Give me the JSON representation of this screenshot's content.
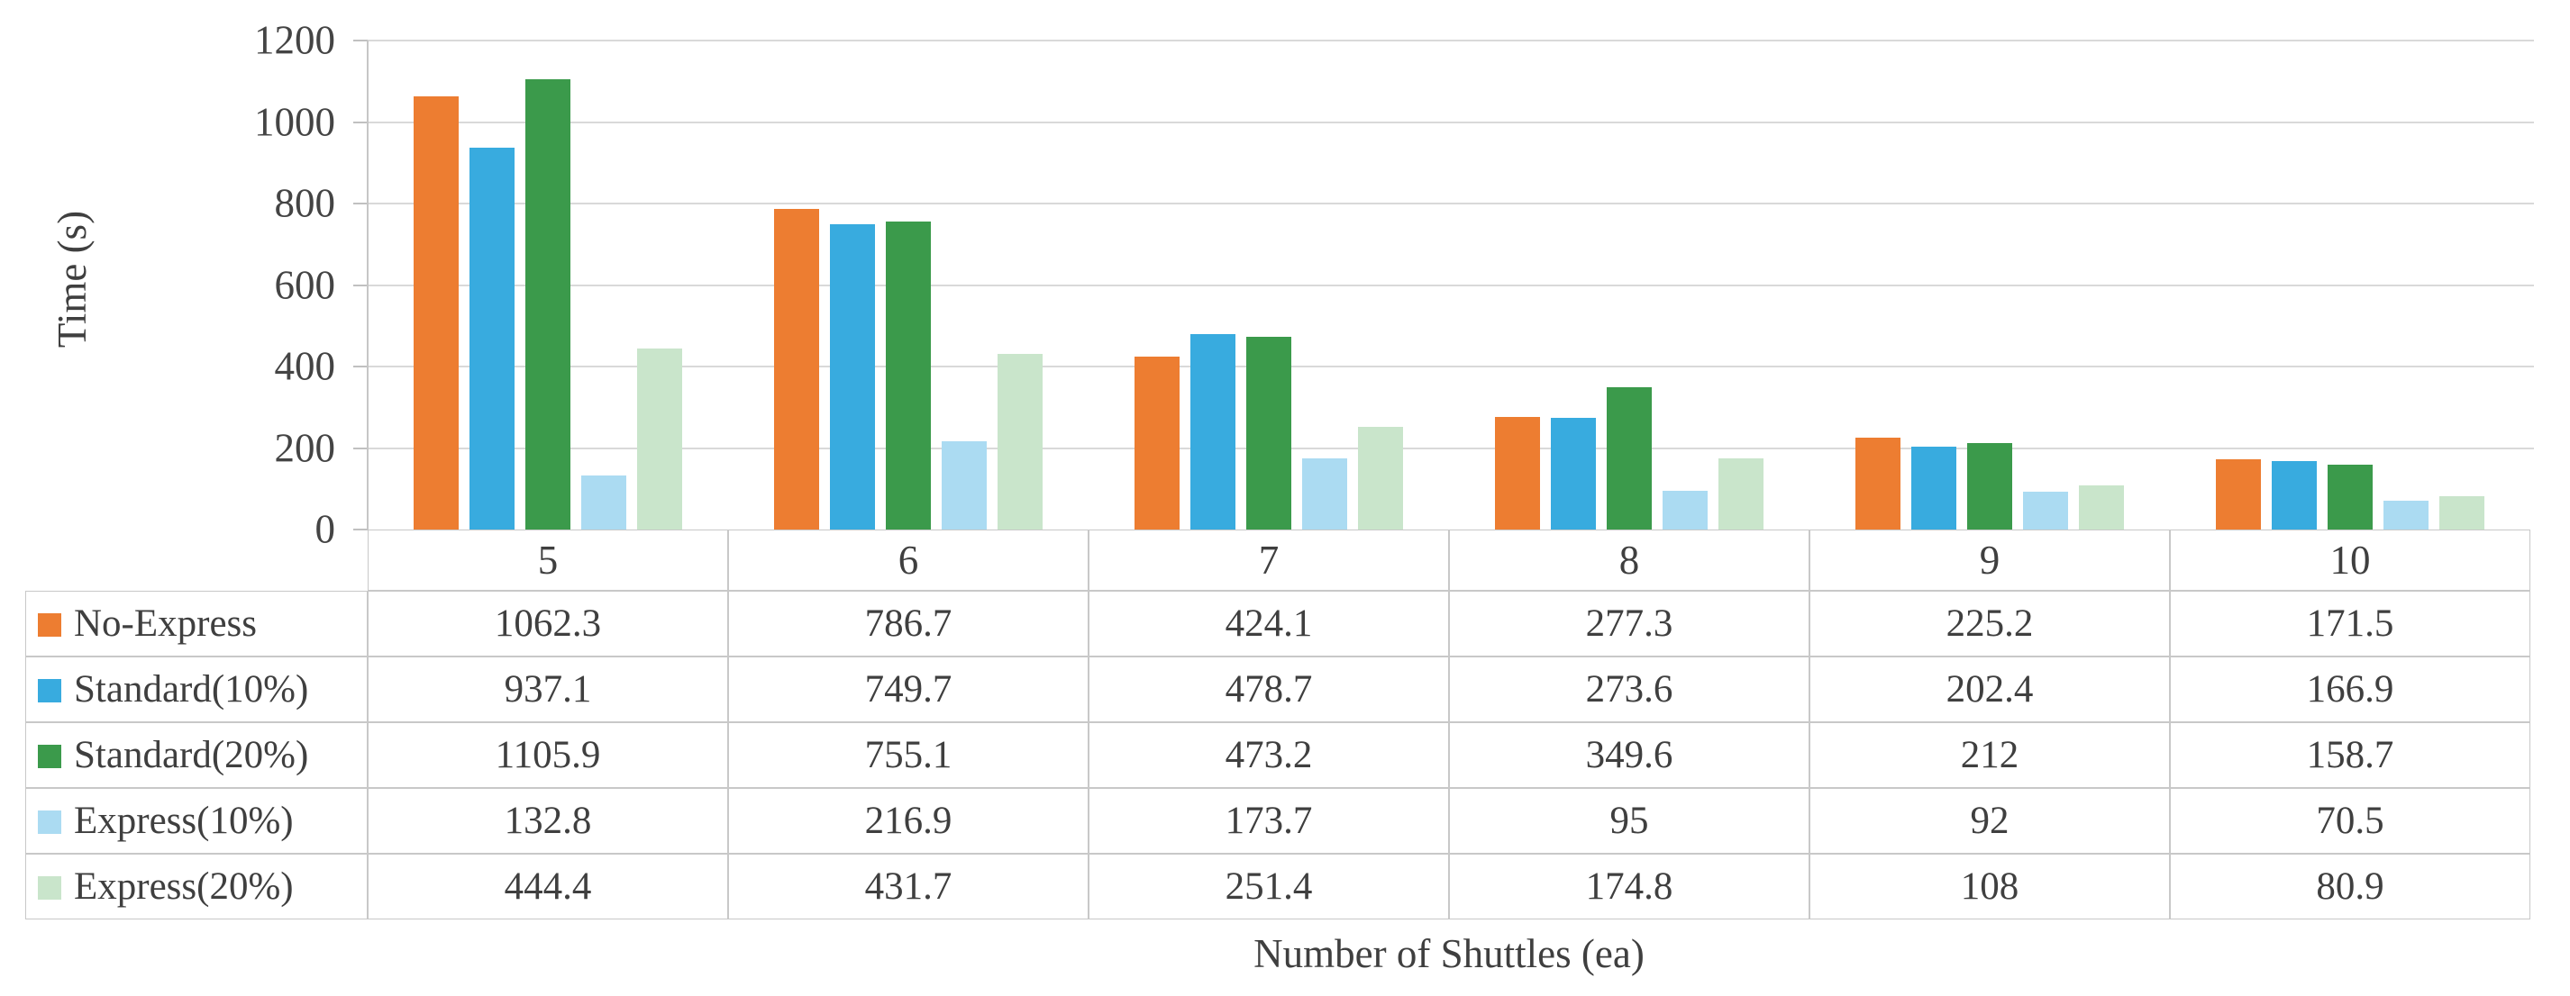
{
  "chart_data": {
    "type": "bar",
    "title": "",
    "xlabel": "Number of Shuttles (ea)",
    "ylabel": "Time (s)",
    "categories": [
      "5",
      "6",
      "7",
      "8",
      "9",
      "10"
    ],
    "series": [
      {
        "name": "No-Express",
        "color": "#ed7d31",
        "values": [
          1062.3,
          786.7,
          424.1,
          277.3,
          225.2,
          171.5
        ]
      },
      {
        "name": "Standard(10%)",
        "color": "#38abdf",
        "values": [
          937.1,
          749.7,
          478.7,
          273.6,
          202.4,
          166.9
        ]
      },
      {
        "name": "Standard(20%)",
        "color": "#3b9a4b",
        "values": [
          1105.9,
          755.1,
          473.2,
          349.6,
          212,
          158.7
        ]
      },
      {
        "name": "Express(10%)",
        "color": "#abdbf2",
        "values": [
          132.8,
          216.9,
          173.7,
          95,
          92,
          70.5
        ]
      },
      {
        "name": "Express(20%)",
        "color": "#c9e5cb",
        "values": [
          444.4,
          431.7,
          251.4,
          174.8,
          108,
          80.9
        ]
      }
    ],
    "ylim": [
      0,
      1200
    ],
    "yticks": [
      0,
      200,
      400,
      600,
      800,
      1000,
      1200
    ],
    "grid": true,
    "legend_position": "table-left",
    "data_table": true,
    "colors": {
      "gridline": "#d9d9d9",
      "axis_line": "#c6c6c6",
      "table_border": "#c8c8c8",
      "text": "#3f3f3f",
      "tick_text": "#444444",
      "background": "#ffffff"
    }
  }
}
